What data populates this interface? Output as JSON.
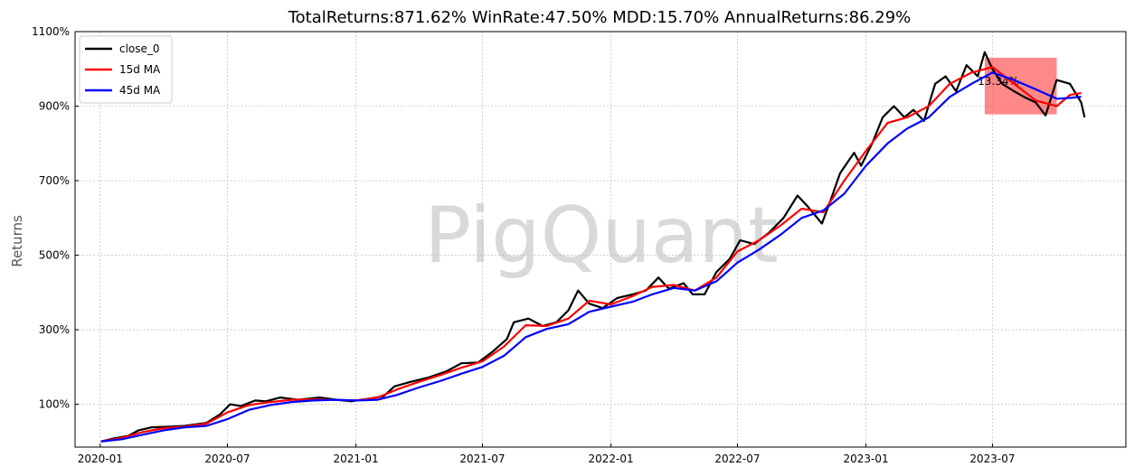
{
  "chart_data": {
    "type": "line",
    "title": "TotalReturns:871.62%  WinRate:47.50%  MDD:15.70%  AnnualReturns:86.29%",
    "xlabel": "",
    "ylabel": "Returns",
    "watermark": "PigQuant",
    "x_range": [
      "2019-11-26",
      "2024-01-08"
    ],
    "ylim": [
      -15,
      1100
    ],
    "x_ticks": [
      {
        "date": "2020-01-01",
        "label": "2020-01"
      },
      {
        "date": "2020-07-01",
        "label": "2020-07"
      },
      {
        "date": "2021-01-01",
        "label": "2021-01"
      },
      {
        "date": "2021-07-01",
        "label": "2021-07"
      },
      {
        "date": "2022-01-01",
        "label": "2022-01"
      },
      {
        "date": "2022-07-01",
        "label": "2022-07"
      },
      {
        "date": "2023-01-01",
        "label": "2023-01"
      },
      {
        "date": "2023-07-01",
        "label": "2023-07"
      }
    ],
    "y_ticks": [
      {
        "value": 100,
        "label": "100%"
      },
      {
        "value": 300,
        "label": "300%"
      },
      {
        "value": 500,
        "label": "500%"
      },
      {
        "value": 700,
        "label": "700%"
      },
      {
        "value": 900,
        "label": "900%"
      },
      {
        "value": 1100,
        "label": "1100%"
      }
    ],
    "grid": true,
    "legend_position": "top-left",
    "series": [
      {
        "name": "close_0",
        "color": "#000000",
        "points": [
          [
            "2020-01-02",
            0
          ],
          [
            "2020-01-20",
            8
          ],
          [
            "2020-02-10",
            15
          ],
          [
            "2020-02-25",
            30
          ],
          [
            "2020-03-15",
            38
          ],
          [
            "2020-04-10",
            40
          ],
          [
            "2020-05-01",
            42
          ],
          [
            "2020-06-01",
            50
          ],
          [
            "2020-06-20",
            72
          ],
          [
            "2020-07-05",
            100
          ],
          [
            "2020-07-20",
            95
          ],
          [
            "2020-08-10",
            110
          ],
          [
            "2020-08-25",
            108
          ],
          [
            "2020-09-15",
            118
          ],
          [
            "2020-10-10",
            112
          ],
          [
            "2020-11-10",
            118
          ],
          [
            "2020-12-05",
            112
          ],
          [
            "2020-12-25",
            108
          ],
          [
            "2021-01-20",
            115
          ],
          [
            "2021-02-10",
            122
          ],
          [
            "2021-02-25",
            148
          ],
          [
            "2021-03-20",
            160
          ],
          [
            "2021-04-15",
            172
          ],
          [
            "2021-05-10",
            188
          ],
          [
            "2021-06-01",
            210
          ],
          [
            "2021-06-25",
            212
          ],
          [
            "2021-07-15",
            240
          ],
          [
            "2021-08-05",
            275
          ],
          [
            "2021-08-15",
            320
          ],
          [
            "2021-09-05",
            330
          ],
          [
            "2021-09-25",
            310
          ],
          [
            "2021-10-15",
            320
          ],
          [
            "2021-11-01",
            352
          ],
          [
            "2021-11-15",
            405
          ],
          [
            "2021-12-01",
            370
          ],
          [
            "2021-12-20",
            358
          ],
          [
            "2022-01-10",
            385
          ],
          [
            "2022-02-01",
            395
          ],
          [
            "2022-02-20",
            405
          ],
          [
            "2022-03-10",
            440
          ],
          [
            "2022-03-25",
            410
          ],
          [
            "2022-04-15",
            425
          ],
          [
            "2022-04-28",
            395
          ],
          [
            "2022-05-15",
            395
          ],
          [
            "2022-06-01",
            455
          ],
          [
            "2022-06-20",
            490
          ],
          [
            "2022-07-05",
            540
          ],
          [
            "2022-07-25",
            530
          ],
          [
            "2022-08-15",
            560
          ],
          [
            "2022-09-05",
            600
          ],
          [
            "2022-09-25",
            660
          ],
          [
            "2022-10-10",
            630
          ],
          [
            "2022-10-30",
            585
          ],
          [
            "2022-11-10",
            640
          ],
          [
            "2022-11-25",
            720
          ],
          [
            "2022-12-15",
            775
          ],
          [
            "2022-12-25",
            740
          ],
          [
            "2023-01-10",
            800
          ],
          [
            "2023-01-25",
            870
          ],
          [
            "2023-02-10",
            900
          ],
          [
            "2023-02-25",
            870
          ],
          [
            "2023-03-10",
            890
          ],
          [
            "2023-03-25",
            860
          ],
          [
            "2023-04-10",
            960
          ],
          [
            "2023-04-25",
            980
          ],
          [
            "2023-05-10",
            940
          ],
          [
            "2023-05-25",
            1010
          ],
          [
            "2023-06-10",
            980
          ],
          [
            "2023-06-20",
            1045
          ],
          [
            "2023-07-01",
            1000
          ],
          [
            "2023-07-15",
            960
          ],
          [
            "2023-08-01",
            940
          ],
          [
            "2023-08-15",
            925
          ],
          [
            "2023-09-01",
            910
          ],
          [
            "2023-09-15",
            875
          ],
          [
            "2023-10-01",
            970
          ],
          [
            "2023-10-20",
            960
          ],
          [
            "2023-11-05",
            910
          ],
          [
            "2023-11-10",
            870
          ]
        ]
      },
      {
        "name": "15d MA",
        "color": "#ff0000",
        "points": [
          [
            "2020-01-02",
            0
          ],
          [
            "2020-02-01",
            10
          ],
          [
            "2020-03-01",
            25
          ],
          [
            "2020-04-01",
            36
          ],
          [
            "2020-05-01",
            40
          ],
          [
            "2020-06-01",
            48
          ],
          [
            "2020-07-01",
            78
          ],
          [
            "2020-08-01",
            98
          ],
          [
            "2020-09-01",
            106
          ],
          [
            "2020-10-01",
            112
          ],
          [
            "2020-11-01",
            113
          ],
          [
            "2020-12-01",
            112
          ],
          [
            "2021-01-01",
            110
          ],
          [
            "2021-02-01",
            118
          ],
          [
            "2021-03-01",
            140
          ],
          [
            "2021-04-01",
            160
          ],
          [
            "2021-05-01",
            178
          ],
          [
            "2021-06-01",
            198
          ],
          [
            "2021-07-01",
            215
          ],
          [
            "2021-08-01",
            255
          ],
          [
            "2021-09-01",
            312
          ],
          [
            "2021-10-01",
            310
          ],
          [
            "2021-11-01",
            330
          ],
          [
            "2021-12-01",
            378
          ],
          [
            "2022-01-01",
            368
          ],
          [
            "2022-02-01",
            390
          ],
          [
            "2022-03-01",
            415
          ],
          [
            "2022-04-01",
            420
          ],
          [
            "2022-05-01",
            405
          ],
          [
            "2022-06-01",
            440
          ],
          [
            "2022-07-01",
            510
          ],
          [
            "2022-08-01",
            540
          ],
          [
            "2022-09-01",
            580
          ],
          [
            "2022-10-01",
            625
          ],
          [
            "2022-11-01",
            615
          ],
          [
            "2022-12-01",
            700
          ],
          [
            "2023-01-01",
            780
          ],
          [
            "2023-02-01",
            855
          ],
          [
            "2023-03-01",
            870
          ],
          [
            "2023-04-01",
            900
          ],
          [
            "2023-05-01",
            960
          ],
          [
            "2023-06-01",
            990
          ],
          [
            "2023-07-01",
            1005
          ],
          [
            "2023-08-01",
            960
          ],
          [
            "2023-09-01",
            915
          ],
          [
            "2023-10-01",
            900
          ],
          [
            "2023-10-20",
            930
          ],
          [
            "2023-11-05",
            935
          ]
        ]
      },
      {
        "name": "45d MA",
        "color": "#0000ff",
        "points": [
          [
            "2020-01-02",
            0
          ],
          [
            "2020-02-01",
            6
          ],
          [
            "2020-03-01",
            18
          ],
          [
            "2020-04-01",
            30
          ],
          [
            "2020-05-01",
            38
          ],
          [
            "2020-06-01",
            42
          ],
          [
            "2020-07-01",
            60
          ],
          [
            "2020-08-01",
            85
          ],
          [
            "2020-09-01",
            98
          ],
          [
            "2020-10-01",
            106
          ],
          [
            "2020-11-01",
            110
          ],
          [
            "2020-12-01",
            112
          ],
          [
            "2021-01-01",
            110
          ],
          [
            "2021-02-01",
            112
          ],
          [
            "2021-03-01",
            125
          ],
          [
            "2021-04-01",
            145
          ],
          [
            "2021-05-01",
            162
          ],
          [
            "2021-06-01",
            182
          ],
          [
            "2021-07-01",
            200
          ],
          [
            "2021-08-01",
            230
          ],
          [
            "2021-09-01",
            280
          ],
          [
            "2021-10-01",
            302
          ],
          [
            "2021-11-01",
            315
          ],
          [
            "2021-12-01",
            348
          ],
          [
            "2022-01-01",
            362
          ],
          [
            "2022-02-01",
            375
          ],
          [
            "2022-03-01",
            395
          ],
          [
            "2022-04-01",
            412
          ],
          [
            "2022-05-01",
            405
          ],
          [
            "2022-06-01",
            430
          ],
          [
            "2022-07-01",
            480
          ],
          [
            "2022-08-01",
            515
          ],
          [
            "2022-09-01",
            555
          ],
          [
            "2022-10-01",
            600
          ],
          [
            "2022-11-01",
            620
          ],
          [
            "2022-12-01",
            665
          ],
          [
            "2023-01-01",
            740
          ],
          [
            "2023-02-01",
            800
          ],
          [
            "2023-03-01",
            840
          ],
          [
            "2023-04-01",
            870
          ],
          [
            "2023-05-01",
            925
          ],
          [
            "2023-06-01",
            960
          ],
          [
            "2023-07-01",
            990
          ],
          [
            "2023-08-01",
            970
          ],
          [
            "2023-09-01",
            945
          ],
          [
            "2023-10-01",
            920
          ],
          [
            "2023-10-20",
            922
          ],
          [
            "2023-11-05",
            925
          ]
        ]
      }
    ],
    "drawdown_region": {
      "x_start": "2023-06-20",
      "x_end": "2023-10-01",
      "y_top": 1030,
      "y_bottom": 878,
      "color": "#ff5555",
      "label": "-13.34%"
    }
  }
}
